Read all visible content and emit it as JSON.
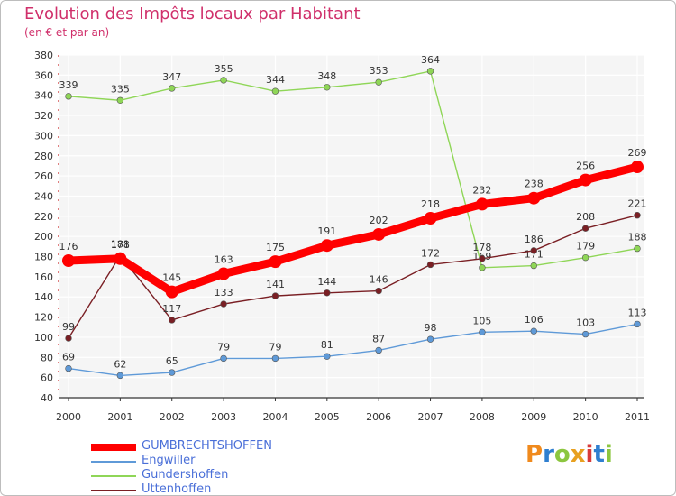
{
  "header": {
    "title": "Evolution des Impôts locaux par Habitant",
    "subtitle": "(en € et par an)"
  },
  "brand": {
    "letters": [
      "P",
      "r",
      "o",
      "x",
      "i",
      "t",
      "i"
    ],
    "colors": [
      "#f08a1d",
      "#2f7fd0",
      "#8cc63f",
      "#e8a020",
      "#d83a3a",
      "#2f7fd0",
      "#8cc63f"
    ]
  },
  "chart_data": {
    "type": "line",
    "title": "Evolution des Impôts locaux par Habitant",
    "subtitle": "(en € et par an)",
    "xlabel": "",
    "ylabel": "",
    "categories": [
      "2000",
      "2001",
      "2002",
      "2003",
      "2004",
      "2005",
      "2006",
      "2007",
      "2008",
      "2009",
      "2010",
      "2011"
    ],
    "ylim": [
      40,
      380
    ],
    "yticks": [
      40,
      60,
      80,
      100,
      120,
      140,
      160,
      180,
      200,
      220,
      240,
      260,
      280,
      300,
      320,
      340,
      360,
      380
    ],
    "grid": true,
    "legend_position": "bottom",
    "series": [
      {
        "name": "GUMBRECHTSHOFFEN",
        "color": "#ff0000",
        "emphasis": true,
        "values": [
          176,
          178,
          145,
          163,
          175,
          191,
          202,
          218,
          232,
          238,
          256,
          269
        ]
      },
      {
        "name": "Engwiller",
        "color": "#5f9ad8",
        "values": [
          69,
          62,
          65,
          79,
          79,
          81,
          87,
          98,
          105,
          106,
          103,
          113
        ]
      },
      {
        "name": "Gundershoffen",
        "color": "#8fd657",
        "values": [
          339,
          335,
          347,
          355,
          344,
          348,
          353,
          364,
          169,
          171,
          179,
          188
        ]
      },
      {
        "name": "Uttenhoffen",
        "color": "#7a1f24",
        "values": [
          99,
          181,
          117,
          133,
          141,
          144,
          146,
          172,
          178,
          186,
          208,
          221
        ]
      }
    ]
  }
}
